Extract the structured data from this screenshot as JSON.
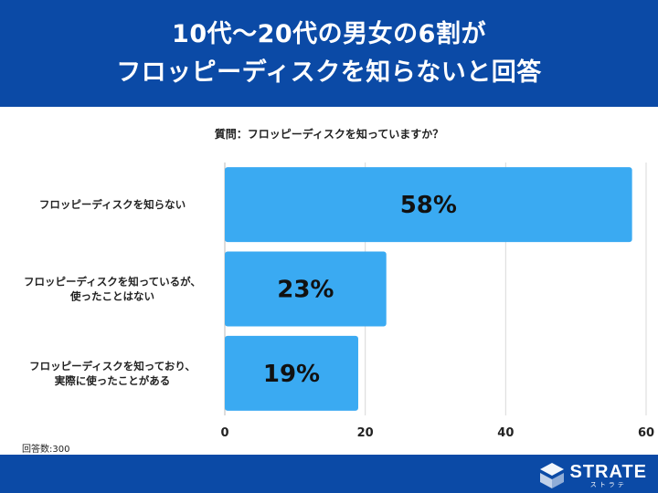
{
  "header": {
    "title_line1": "10代〜20代の男女の6割が",
    "title_line2": "フロッピーディスクを知らないと回答"
  },
  "question": "質問：フロッピーディスクを知っていますか？",
  "respondents": "回答数:300",
  "brand": {
    "name": "STRATE",
    "sub": "ストラテ"
  },
  "colors": {
    "header": "#0b4aa6",
    "bar": "#3aaaf2",
    "grid": "#d9d9d9"
  },
  "chart_data": {
    "type": "bar",
    "orientation": "horizontal",
    "categories": [
      [
        "フロッピーディスクを知らない"
      ],
      [
        "フロッピーディスクを知っているが、",
        "使ったことはない"
      ],
      [
        "フロッピーディスクを知っており、",
        "実際に使ったことがある"
      ]
    ],
    "values": [
      58,
      23,
      19
    ],
    "value_labels": [
      "58%",
      "23%",
      "19%"
    ],
    "xlim": [
      0,
      60
    ],
    "xticks": [
      0,
      20,
      40,
      60
    ],
    "grid": true
  }
}
